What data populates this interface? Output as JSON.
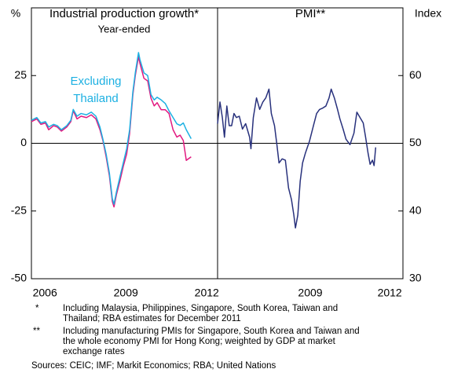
{
  "chart_data": [
    {
      "type": "line",
      "title": "Industrial production growth*",
      "subtitle": "Year-ended",
      "ylabel": "%",
      "annotation": [
        "Excluding",
        "Thailand"
      ],
      "xlim": [
        2006.0,
        2012.9
      ],
      "ylim": [
        -50,
        50
      ],
      "yticks": [
        -50,
        -25,
        0,
        25
      ],
      "xticks": [
        {
          "value": 2006.5,
          "label": "2006"
        },
        {
          "value": 2009.5,
          "label": "2009"
        },
        {
          "value": 2012.5,
          "label": "2012"
        }
      ],
      "x": [
        2006.0,
        2006.2,
        2006.35,
        2006.52,
        2006.64,
        2006.82,
        2006.96,
        2007.11,
        2007.31,
        2007.46,
        2007.55,
        2007.69,
        2007.84,
        2008.04,
        2008.22,
        2008.39,
        2008.54,
        2008.65,
        2008.77,
        2008.89,
        2009.0,
        2009.06,
        2009.15,
        2009.29,
        2009.41,
        2009.53,
        2009.64,
        2009.76,
        2009.85,
        2009.97,
        2010.02,
        2010.17,
        2010.31,
        2010.43,
        2010.55,
        2010.66,
        2010.81,
        2010.96,
        2011.1,
        2011.25,
        2011.39,
        2011.51,
        2011.63,
        2011.74,
        2011.92
      ],
      "series": [
        {
          "color": "#e2187f",
          "values": [
            8,
            9,
            7,
            7.5,
            5,
            6.5,
            6,
            4.5,
            6,
            8,
            12,
            9,
            10,
            9.5,
            10.5,
            9,
            5,
            1,
            -5,
            -12,
            -21.5,
            -23.5,
            -19,
            -13.5,
            -8.3,
            -4,
            3.7,
            18,
            25,
            32,
            29.6,
            24,
            23,
            16.7,
            13.8,
            15,
            12.4,
            12.4,
            11,
            5,
            2.3,
            3,
            1,
            -6.3,
            -5
          ]
        },
        {
          "color": "#1cb0e2",
          "values": [
            8.5,
            9.5,
            7.5,
            8,
            6,
            7,
            6.5,
            5,
            6.5,
            8.5,
            12.5,
            10,
            11,
            10.5,
            11.5,
            10,
            6,
            1.5,
            -4,
            -11,
            -20.5,
            -22.5,
            -18,
            -12,
            -7,
            -2,
            5,
            19,
            26,
            33.5,
            31,
            26,
            25,
            18,
            16,
            17,
            16,
            14.7,
            12,
            9.5,
            7.2,
            6.6,
            7.5,
            5,
            1.7
          ]
        }
      ]
    },
    {
      "type": "line",
      "title": "PMI**",
      "y2label": "Index",
      "xlim": [
        2006.0,
        2013.0
      ],
      "y2lim": [
        30,
        70
      ],
      "y2ticks": [
        30,
        40,
        50,
        60
      ],
      "xticks": [
        {
          "value": 2009.5,
          "label": "2009"
        },
        {
          "value": 2012.5,
          "label": "2012"
        }
      ],
      "x": [
        2006.0,
        2006.09,
        2006.18,
        2006.26,
        2006.35,
        2006.44,
        2006.53,
        2006.62,
        2006.71,
        2006.82,
        2006.94,
        2007.06,
        2007.21,
        2007.26,
        2007.35,
        2007.47,
        2007.59,
        2007.71,
        2007.82,
        2007.94,
        2008.03,
        2008.15,
        2008.24,
        2008.32,
        2008.44,
        2008.56,
        2008.68,
        2008.79,
        2008.88,
        2008.94,
        2009.03,
        2009.12,
        2009.21,
        2009.32,
        2009.47,
        2009.62,
        2009.74,
        2009.85,
        2009.97,
        2010.09,
        2010.21,
        2010.29,
        2010.41,
        2010.53,
        2010.62,
        2010.74,
        2010.85,
        2011.0,
        2011.15,
        2011.26,
        2011.38,
        2011.5,
        2011.59,
        2011.68,
        2011.76,
        2011.85,
        2011.91,
        2011.97
      ],
      "series": [
        {
          "color": "#28317c",
          "axis": "y2",
          "values": [
            52.9,
            56.1,
            53.8,
            50.9,
            55.5,
            52.6,
            52.6,
            54.4,
            53.8,
            54,
            52.1,
            52.9,
            50.9,
            49.2,
            53.8,
            56.7,
            55,
            56.1,
            56.7,
            58,
            54.4,
            52.6,
            49.8,
            47.1,
            47.7,
            47.5,
            43.4,
            41.7,
            39.4,
            37.5,
            39.4,
            44.4,
            47.1,
            48.6,
            50.3,
            52.6,
            54.4,
            55,
            55.2,
            55.5,
            56.7,
            58,
            56.7,
            55,
            53.6,
            52.1,
            50.6,
            49.8,
            51.5,
            54.6,
            53.8,
            53,
            50.9,
            48.6,
            46.9,
            47.5,
            46.7,
            49.4
          ]
        }
      ]
    }
  ],
  "notes": [
    {
      "marker": "*",
      "lines": [
        "Including Malaysia, Philippines, Singapore, South Korea, Taiwan and",
        "Thailand; RBA estimates for December 2011"
      ]
    },
    {
      "marker": "**",
      "lines": [
        "Including manufacturing PMIs for Singapore, South Korea and Taiwan and",
        "the whole economy PMI for Hong Kong; weighted by GDP at market",
        "exchange rates"
      ]
    }
  ],
  "sources": "Sources: CEIC; IMF; Markit Economics; RBA; United Nations"
}
